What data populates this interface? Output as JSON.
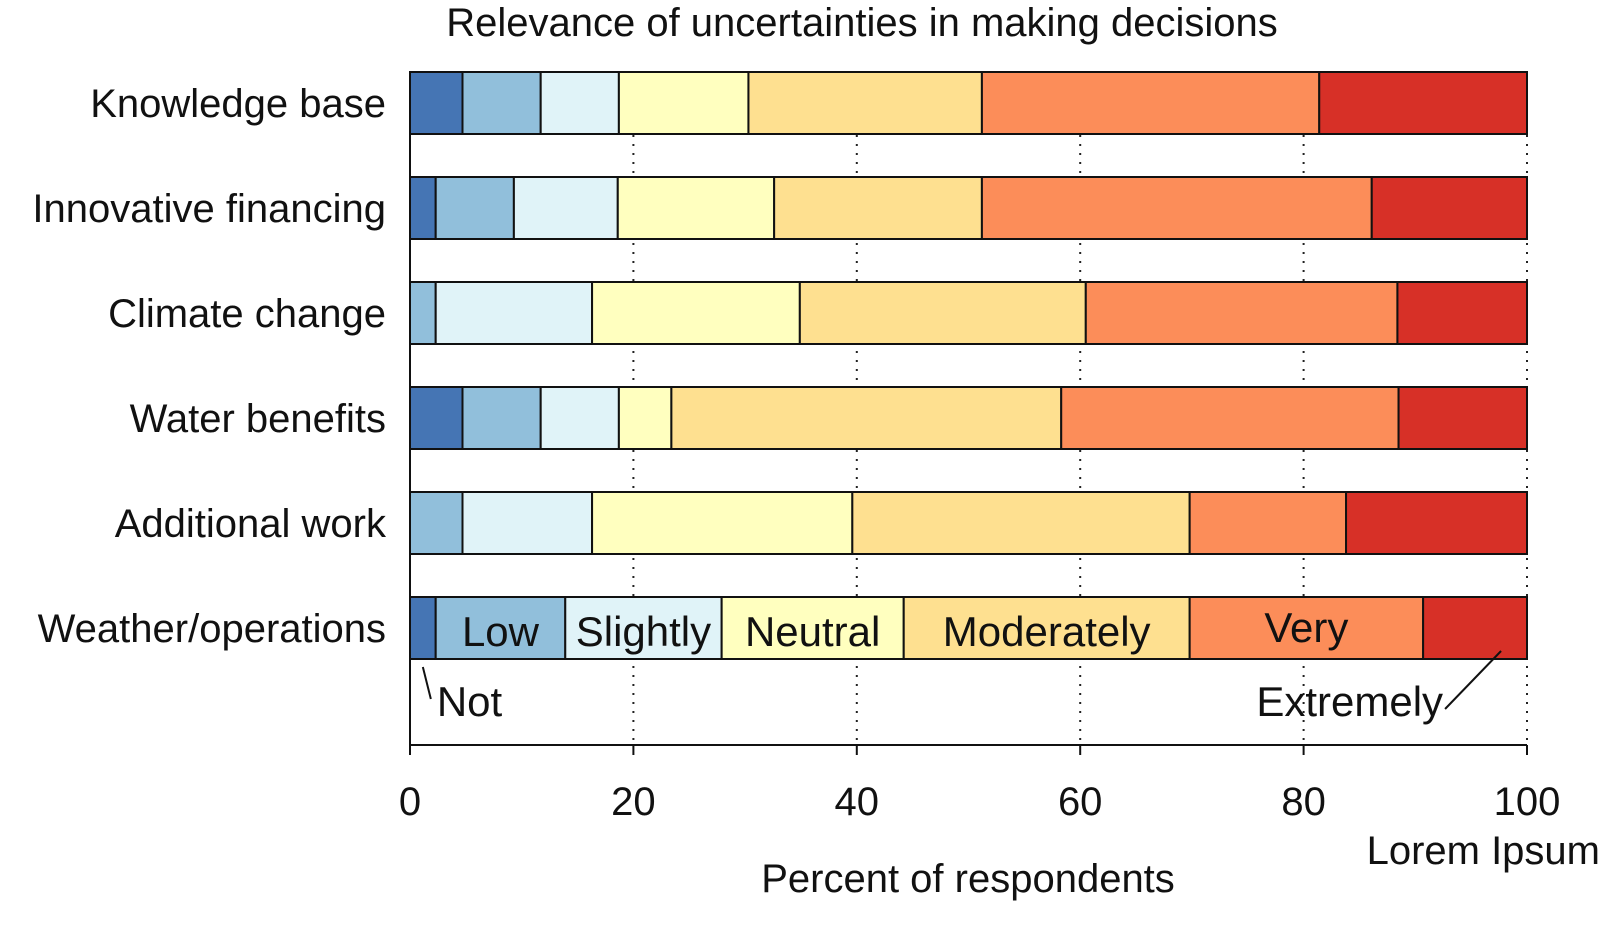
{
  "chart_data": {
    "type": "bar",
    "orientation": "horizontal",
    "stacked": true,
    "title": "Relevance of uncertainties in making decisions",
    "xlabel": "Percent of respondents",
    "ylabel": "",
    "xlim": [
      0,
      100
    ],
    "xticks": [
      "0",
      "20",
      "40",
      "60",
      "80",
      "100"
    ],
    "grid": "vertical dotted",
    "corner_note": "Lorem Ipsum",
    "categories": [
      "Knowledge base",
      "Innovative financing",
      "Climate change",
      "Water benefits",
      "Additional work",
      "Weather/operations"
    ],
    "series": [
      {
        "name": "Not",
        "color": "#4575b4",
        "values": [
          4.7,
          2.3,
          0,
          4.7,
          0,
          2.3
        ]
      },
      {
        "name": "Low",
        "color": "#91bfdb",
        "values": [
          7.0,
          7.0,
          2.3,
          7.0,
          4.7,
          11.6
        ]
      },
      {
        "name": "Slightly",
        "color": "#e0f3f8",
        "values": [
          7.0,
          9.3,
          14.0,
          7.0,
          11.6,
          14.0
        ]
      },
      {
        "name": "Neutral",
        "color": "#ffffbf",
        "values": [
          11.6,
          14.0,
          18.6,
          4.7,
          23.3,
          16.3
        ]
      },
      {
        "name": "Moderately",
        "color": "#fee090",
        "values": [
          20.9,
          18.6,
          25.6,
          34.9,
          30.2,
          25.6
        ]
      },
      {
        "name": "Very",
        "color": "#fc8d59",
        "values": [
          30.2,
          34.9,
          27.9,
          30.2,
          14.0,
          20.9
        ]
      },
      {
        "name": "Extremely",
        "color": "#d73027",
        "values": [
          18.6,
          13.9,
          11.6,
          11.5,
          16.2,
          9.3
        ]
      }
    ],
    "inline_labels": [
      {
        "series": "Low",
        "text": "Low"
      },
      {
        "series": "Slightly",
        "text": "Slightly"
      },
      {
        "series": "Neutral",
        "text": "Neutral"
      },
      {
        "series": "Moderately",
        "text": "Moderately"
      },
      {
        "series": "Very",
        "text": "Very"
      }
    ],
    "callout_labels": [
      {
        "series": "Not",
        "text": "Not"
      },
      {
        "series": "Extremely",
        "text": "Extremely"
      }
    ]
  }
}
